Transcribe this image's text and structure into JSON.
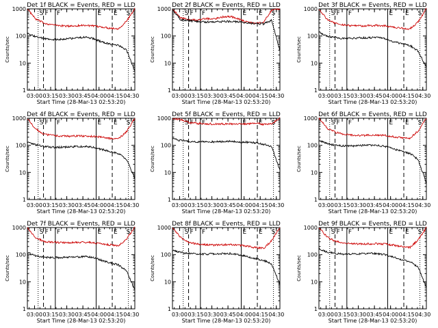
{
  "chart_data": [
    {
      "type": "line",
      "title": "Det 1f BLACK = Events, RED = LLD",
      "xlabel": "Start Time (28-Mar-13 02:53:20)",
      "ylabel": "Counts/sec",
      "yscale": "log",
      "ylim": [
        1,
        1000
      ],
      "xlim": [
        "02:53:20",
        "04:33:20"
      ],
      "xtick_labels": [
        "03:00",
        "03:15",
        "03:30",
        "03:45",
        "04:00",
        "04:15",
        "04:30"
      ],
      "ytick_labels": [
        "1",
        "10",
        "100",
        "1000"
      ],
      "markers": [
        "S",
        "F",
        "F",
        "E",
        "E",
        "S"
      ],
      "series": [
        {
          "color": "#cc0000",
          "values": [
            1000,
            420,
            300,
            260,
            240,
            230,
            240,
            250,
            230,
            215,
            195,
            185,
            350,
            1000
          ]
        },
        {
          "color": "#000000",
          "values": [
            120,
            95,
            80,
            72,
            75,
            80,
            85,
            90,
            80,
            60,
            50,
            45,
            30,
            5
          ]
        }
      ]
    },
    {
      "type": "line",
      "title": "Det 2f BLACK = Events, RED = LLD",
      "xlabel": "Start Time (28-Mar-13 02:53:20)",
      "ylabel": "Counts/sec",
      "yscale": "log",
      "ylim": [
        1,
        1000
      ],
      "xlim": [
        "02:53:20",
        "04:33:20"
      ],
      "xtick_labels": [
        "03:00",
        "03:15",
        "03:30",
        "03:45",
        "04:00",
        "04:15",
        "04:30"
      ],
      "ytick_labels": [
        "1",
        "10",
        "100",
        "1000"
      ],
      "markers": [
        "S",
        "F",
        "F",
        "E",
        "E",
        "S"
      ],
      "series": [
        {
          "color": "#cc0000",
          "values": [
            1000,
            450,
            420,
            380,
            440,
            420,
            500,
            520,
            430,
            320,
            300,
            320,
            900,
            1000
          ]
        },
        {
          "color": "#000000",
          "values": [
            900,
            400,
            370,
            340,
            330,
            335,
            340,
            345,
            335,
            305,
            290,
            280,
            380,
            30
          ]
        }
      ]
    },
    {
      "type": "line",
      "title": "Det 3f BLACK = Events, RED = LLD",
      "xlabel": "Start Time (28-Mar-13 02:53:20)",
      "ylabel": "Counts/sec",
      "yscale": "log",
      "ylim": [
        1,
        1000
      ],
      "xlim": [
        "02:53:20",
        "04:33:20"
      ],
      "xtick_labels": [
        "03:00",
        "03:15",
        "03:30",
        "03:45",
        "04:00",
        "04:15",
        "04:30"
      ],
      "ytick_labels": [
        "1",
        "10",
        "100",
        "1000"
      ],
      "markers": [
        "S",
        "F",
        "F",
        "E",
        "E",
        "S"
      ],
      "series": [
        {
          "color": "#cc0000",
          "values": [
            1000,
            400,
            290,
            260,
            240,
            235,
            240,
            245,
            235,
            215,
            195,
            180,
            330,
            1000
          ]
        },
        {
          "color": "#000000",
          "values": [
            140,
            100,
            88,
            80,
            82,
            85,
            86,
            88,
            80,
            62,
            52,
            45,
            28,
            7
          ]
        }
      ]
    },
    {
      "type": "line",
      "title": "Det 4f BLACK = Events, RED = LLD",
      "xlabel": "Start Time (28-Mar-13 02:53:20)",
      "ylabel": "Counts/sec",
      "yscale": "log",
      "ylim": [
        1,
        1000
      ],
      "xlim": [
        "02:53:20",
        "04:33:20"
      ],
      "xtick_labels": [
        "03:00",
        "03:15",
        "03:30",
        "03:45",
        "04:00",
        "04:15",
        "04:30"
      ],
      "ytick_labels": [
        "1",
        "10",
        "100",
        "1000"
      ],
      "markers": [
        "S",
        "F",
        "F",
        "E",
        "E",
        "S"
      ],
      "series": [
        {
          "color": "#cc0000",
          "values": [
            1000,
            400,
            260,
            230,
            220,
            215,
            220,
            220,
            215,
            200,
            180,
            170,
            320,
            1000
          ]
        },
        {
          "color": "#000000",
          "values": [
            130,
            105,
            90,
            85,
            85,
            88,
            90,
            92,
            85,
            70,
            60,
            50,
            30,
            6
          ]
        }
      ]
    },
    {
      "type": "line",
      "title": "Det 5f BLACK = Events, RED = LLD",
      "xlabel": "Start Time (28-Mar-13 02:53:20)",
      "ylabel": "Counts/sec",
      "yscale": "log",
      "ylim": [
        1,
        1000
      ],
      "xlim": [
        "02:53:20",
        "04:33:20"
      ],
      "xtick_labels": [
        "03:00",
        "03:15",
        "03:30",
        "03:45",
        "04:00",
        "04:15",
        "04:30"
      ],
      "ytick_labels": [
        "1",
        "10",
        "100",
        "1000"
      ],
      "markers": [
        "S",
        "F",
        "F",
        "E",
        "E",
        "S"
      ],
      "series": [
        {
          "color": "#cc0000",
          "values": [
            1000,
            900,
            700,
            640,
            620,
            610,
            615,
            620,
            610,
            620,
            650,
            600,
            640,
            1000
          ]
        },
        {
          "color": "#000000",
          "values": [
            180,
            150,
            140,
            135,
            135,
            135,
            137,
            140,
            135,
            130,
            125,
            110,
            90,
            12
          ]
        }
      ]
    },
    {
      "type": "line",
      "title": "Det 6f BLACK = Events, RED = LLD",
      "xlabel": "Start Time (28-Mar-13 02:53:20)",
      "ylabel": "Counts/sec",
      "yscale": "log",
      "ylim": [
        1,
        1000
      ],
      "xlim": [
        "02:53:20",
        "04:33:20"
      ],
      "xtick_labels": [
        "03:00",
        "03:15",
        "03:30",
        "03:45",
        "04:00",
        "04:15",
        "04:30"
      ],
      "ytick_labels": [
        "1",
        "10",
        "100",
        "1000"
      ],
      "markers": [
        "S",
        "F",
        "F",
        "E",
        "E",
        "S"
      ],
      "series": [
        {
          "color": "#cc0000",
          "values": [
            1000,
            420,
            300,
            260,
            240,
            230,
            235,
            240,
            230,
            210,
            190,
            180,
            340,
            1000
          ]
        },
        {
          "color": "#000000",
          "values": [
            150,
            115,
            100,
            95,
            95,
            98,
            100,
            100,
            90,
            75,
            60,
            50,
            30,
            4
          ]
        }
      ]
    },
    {
      "type": "line",
      "title": "Det 7f BLACK = Events, RED = LLD",
      "xlabel": "Start Time (28-Mar-13 02:53:20)",
      "ylabel": "Counts/sec",
      "yscale": "log",
      "ylim": [
        1,
        1000
      ],
      "xlim": [
        "02:53:20",
        "04:33:20"
      ],
      "xtick_labels": [
        "03:00",
        "03:15",
        "03:30",
        "03:45",
        "04:00",
        "04:15",
        "04:30"
      ],
      "ytick_labels": [
        "1",
        "10",
        "100",
        "1000"
      ],
      "markers": [
        "S",
        "F",
        "F",
        "E",
        "E",
        "S"
      ],
      "series": [
        {
          "color": "#cc0000",
          "values": [
            1000,
            420,
            310,
            290,
            280,
            275,
            280,
            285,
            275,
            255,
            230,
            210,
            380,
            1000
          ]
        },
        {
          "color": "#000000",
          "values": [
            120,
            90,
            80,
            78,
            78,
            80,
            82,
            84,
            78,
            62,
            50,
            42,
            25,
            5
          ]
        }
      ]
    },
    {
      "type": "line",
      "title": "Det 8f BLACK = Events, RED = LLD",
      "xlabel": "Start Time (28-Mar-13 02:53:20)",
      "ylabel": "Counts/sec",
      "yscale": "log",
      "ylim": [
        1,
        1000
      ],
      "xlim": [
        "02:53:20",
        "04:33:20"
      ],
      "xtick_labels": [
        "03:00",
        "03:15",
        "03:30",
        "03:45",
        "04:00",
        "04:15",
        "04:30"
      ],
      "ytick_labels": [
        "1",
        "10",
        "100",
        "1000"
      ],
      "markers": [
        "S",
        "F",
        "F",
        "E",
        "E",
        "S"
      ],
      "series": [
        {
          "color": "#cc0000",
          "values": [
            1000,
            420,
            280,
            250,
            235,
            225,
            230,
            235,
            225,
            205,
            185,
            170,
            320,
            1000
          ]
        },
        {
          "color": "#000000",
          "values": [
            150,
            120,
            110,
            105,
            105,
            108,
            110,
            110,
            100,
            85,
            72,
            62,
            45,
            8
          ]
        }
      ]
    },
    {
      "type": "line",
      "title": "Det 9f BLACK = Events, RED = LLD",
      "xlabel": "Start Time (28-Mar-13 02:53:20)",
      "ylabel": "Counts/sec",
      "yscale": "log",
      "ylim": [
        1,
        1000
      ],
      "xlim": [
        "02:53:20",
        "04:33:20"
      ],
      "xtick_labels": [
        "03:00",
        "03:15",
        "03:30",
        "03:45",
        "04:00",
        "04:15",
        "04:30"
      ],
      "ytick_labels": [
        "1",
        "10",
        "100",
        "1000"
      ],
      "markers": [
        "S",
        "F",
        "F",
        "E",
        "E",
        "S"
      ],
      "series": [
        {
          "color": "#cc0000",
          "values": [
            1000,
            440,
            310,
            270,
            255,
            245,
            250,
            255,
            245,
            225,
            200,
            185,
            340,
            1000
          ]
        },
        {
          "color": "#000000",
          "values": [
            160,
            125,
            112,
            105,
            105,
            108,
            110,
            110,
            100,
            82,
            65,
            55,
            35,
            6
          ]
        }
      ]
    }
  ]
}
